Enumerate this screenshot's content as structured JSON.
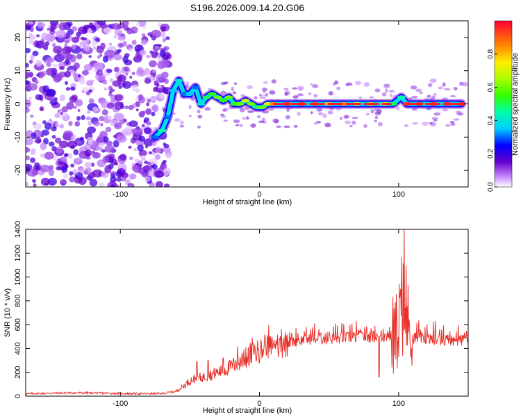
{
  "title": "S196.2026.009.14.20.G06",
  "colorbar": {
    "label": "Normalized spectral amplitude",
    "range": [
      0,
      1
    ],
    "ticks": [
      0,
      0.2,
      0.4,
      0.6,
      0.8
    ],
    "tick_labels": [
      "0.0",
      "0.2",
      "0.4",
      "0.6",
      "0.8"
    ]
  },
  "chart_data": [
    {
      "type": "heatmap",
      "name": "spectrogram",
      "xlabel": "Height of straight line (km)",
      "ylabel": "Frequency (Hz)",
      "xlim": [
        -168,
        150
      ],
      "ylim": [
        -25,
        25
      ],
      "xticks": [
        -100,
        0,
        100
      ],
      "xtick_labels": [
        "-100",
        "0",
        "100"
      ],
      "yticks": [
        -20,
        -10,
        0,
        10,
        20
      ],
      "ytick_labels": [
        "-20",
        "-10",
        "0",
        "10",
        "20"
      ],
      "noise_region": {
        "x": [
          -168,
          -65
        ],
        "y": [
          -25,
          25
        ],
        "amplitude_range": [
          0.02,
          0.2
        ]
      },
      "signal_track": [
        {
          "x": -75,
          "y": -10,
          "a": 0.3
        },
        {
          "x": -70,
          "y": -8,
          "a": 0.45
        },
        {
          "x": -66,
          "y": -4,
          "a": 0.3
        },
        {
          "x": -62,
          "y": 4,
          "a": 0.35
        },
        {
          "x": -58,
          "y": 7,
          "a": 0.4
        },
        {
          "x": -54,
          "y": 3,
          "a": 0.3
        },
        {
          "x": -50,
          "y": 3,
          "a": 0.35
        },
        {
          "x": -46,
          "y": 5,
          "a": 0.3
        },
        {
          "x": -42,
          "y": 0,
          "a": 0.4
        },
        {
          "x": -38,
          "y": 2,
          "a": 0.5
        },
        {
          "x": -34,
          "y": 3,
          "a": 0.55
        },
        {
          "x": -30,
          "y": 2,
          "a": 0.6
        },
        {
          "x": -26,
          "y": 1,
          "a": 0.55
        },
        {
          "x": -22,
          "y": 2,
          "a": 0.6
        },
        {
          "x": -18,
          "y": 0,
          "a": 0.55
        },
        {
          "x": -14,
          "y": 0,
          "a": 0.6
        },
        {
          "x": -10,
          "y": 1,
          "a": 0.7
        },
        {
          "x": -6,
          "y": 0,
          "a": 0.6
        },
        {
          "x": -2,
          "y": -1,
          "a": 0.5
        },
        {
          "x": 2,
          "y": -1,
          "a": 0.6
        },
        {
          "x": 6,
          "y": 0,
          "a": 0.7
        },
        {
          "x": 10,
          "y": 0,
          "a": 0.85
        },
        {
          "x": 20,
          "y": 0,
          "a": 0.95
        },
        {
          "x": 30,
          "y": 0,
          "a": 0.95
        },
        {
          "x": 40,
          "y": 0,
          "a": 0.9
        },
        {
          "x": 50,
          "y": 0,
          "a": 0.8
        },
        {
          "x": 60,
          "y": 0,
          "a": 0.85
        },
        {
          "x": 70,
          "y": 0,
          "a": 0.75
        },
        {
          "x": 80,
          "y": 0,
          "a": 0.8
        },
        {
          "x": 90,
          "y": 0,
          "a": 0.7
        },
        {
          "x": 96,
          "y": 0,
          "a": 0.5
        },
        {
          "x": 102,
          "y": 2,
          "a": 0.45
        },
        {
          "x": 106,
          "y": 0,
          "a": 0.95
        },
        {
          "x": 115,
          "y": 0,
          "a": 0.95
        },
        {
          "x": 125,
          "y": 0,
          "a": 0.95
        },
        {
          "x": 135,
          "y": 0,
          "a": 0.95
        },
        {
          "x": 145,
          "y": 0,
          "a": 0.95
        }
      ]
    },
    {
      "type": "line",
      "name": "snr",
      "xlabel": "Height of straight line (km)",
      "ylabel": "SNR (10 * v/v)",
      "xlim": [
        -168,
        150
      ],
      "ylim": [
        0,
        1400
      ],
      "xticks": [
        -100,
        0,
        100
      ],
      "xtick_labels": [
        "-100",
        "0",
        "100"
      ],
      "yticks": [
        0,
        200,
        400,
        600,
        800,
        1000,
        1200,
        1400
      ],
      "ytick_labels": [
        "0",
        "200",
        "400",
        "600",
        "800",
        "1000",
        "1200",
        "1400"
      ],
      "color": "#e8302a",
      "series": [
        {
          "name": "SNR",
          "x": [
            -168,
            -150,
            -130,
            -110,
            -90,
            -70,
            -60,
            -55,
            -50,
            -45,
            -40,
            -35,
            -30,
            -25,
            -20,
            -15,
            -10,
            -5,
            0,
            5,
            10,
            15,
            20,
            25,
            30,
            40,
            50,
            60,
            70,
            80,
            85,
            90,
            95,
            98,
            100,
            102,
            104,
            106,
            108,
            110,
            120,
            130,
            140,
            150
          ],
          "y": [
            20,
            25,
            28,
            25,
            20,
            22,
            40,
            80,
            130,
            150,
            160,
            180,
            200,
            220,
            250,
            280,
            310,
            350,
            380,
            400,
            410,
            430,
            450,
            460,
            470,
            480,
            480,
            490,
            495,
            500,
            500,
            500,
            500,
            520,
            560,
            700,
            900,
            640,
            520,
            490,
            480,
            475,
            470,
            470
          ]
        }
      ],
      "peaks": [
        {
          "x": -45,
          "y": 290
        },
        {
          "x": -37,
          "y": 300
        },
        {
          "x": -26,
          "y": 320
        },
        {
          "x": 96,
          "y": 850
        },
        {
          "x": 99,
          "y": 900
        },
        {
          "x": 101,
          "y": 1030
        },
        {
          "x": 104,
          "y": 1400
        },
        {
          "x": 107,
          "y": 1100
        }
      ],
      "dips": [
        {
          "x": 86,
          "y": 160
        },
        {
          "x": 97,
          "y": 120
        },
        {
          "x": 100,
          "y": 60
        },
        {
          "x": 103,
          "y": 10
        },
        {
          "x": 105,
          "y": 40
        },
        {
          "x": 109,
          "y": 300
        }
      ]
    }
  ]
}
